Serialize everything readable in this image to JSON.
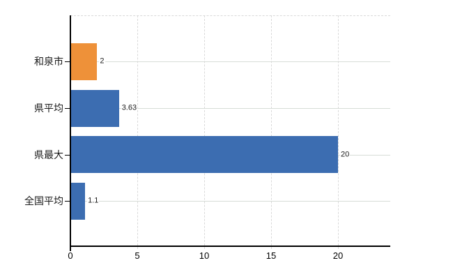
{
  "chart_data": {
    "type": "bar",
    "orientation": "horizontal",
    "title": "",
    "xlabel": "",
    "ylabel": "",
    "legend": "none",
    "categories": [
      "和泉市",
      "県平均",
      "県最大",
      "全国平均"
    ],
    "values": [
      2,
      3.63,
      20,
      1.1
    ],
    "value_labels": [
      "2",
      "3.63",
      "20",
      "1.1"
    ],
    "bar_colors": [
      "#ee9139",
      "#3c6db1",
      "#3c6db1",
      "#3c6db1"
    ],
    "x_ticks": [
      "0",
      "5",
      "10",
      "15",
      "20"
    ],
    "x_tick_values": [
      0,
      5,
      10,
      15,
      20
    ],
    "xlim": [
      0,
      23.9
    ],
    "grid": {
      "vertical_style": "dashed",
      "horizontal_style": "solid",
      "horizontal_at": "category-centers"
    }
  },
  "colors": {
    "background": "#ffffff",
    "axis": "#000000",
    "text": "#1a1a1a",
    "grid_horizontal": "#d7ddd7",
    "grid_vertical": "#d9d9d9",
    "bar_orange": "#ee9139",
    "bar_blue": "#3c6db1"
  }
}
